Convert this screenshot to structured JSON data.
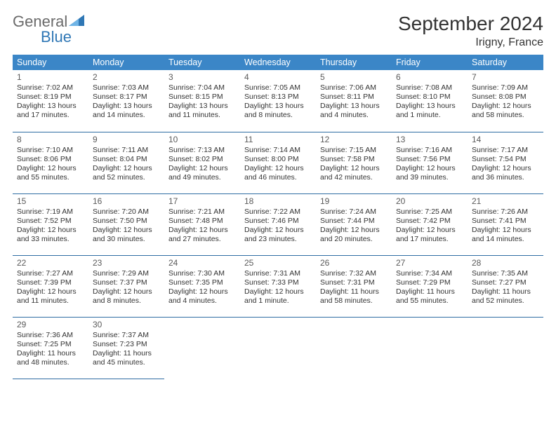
{
  "brand": {
    "general": "General",
    "blue": "Blue"
  },
  "title": "September 2024",
  "location": "Irigny, France",
  "colors": {
    "header_bg": "#3b86c7",
    "header_text": "#ffffff",
    "row_border": "#2f6da3",
    "brand_blue": "#2f77b5",
    "brand_gray": "#6b6b6b",
    "text": "#333333",
    "background": "#ffffff"
  },
  "weekdays": [
    "Sunday",
    "Monday",
    "Tuesday",
    "Wednesday",
    "Thursday",
    "Friday",
    "Saturday"
  ],
  "days": [
    {
      "n": "1",
      "sr": "Sunrise: 7:02 AM",
      "ss": "Sunset: 8:19 PM",
      "d1": "Daylight: 13 hours",
      "d2": "and 17 minutes."
    },
    {
      "n": "2",
      "sr": "Sunrise: 7:03 AM",
      "ss": "Sunset: 8:17 PM",
      "d1": "Daylight: 13 hours",
      "d2": "and 14 minutes."
    },
    {
      "n": "3",
      "sr": "Sunrise: 7:04 AM",
      "ss": "Sunset: 8:15 PM",
      "d1": "Daylight: 13 hours",
      "d2": "and 11 minutes."
    },
    {
      "n": "4",
      "sr": "Sunrise: 7:05 AM",
      "ss": "Sunset: 8:13 PM",
      "d1": "Daylight: 13 hours",
      "d2": "and 8 minutes."
    },
    {
      "n": "5",
      "sr": "Sunrise: 7:06 AM",
      "ss": "Sunset: 8:11 PM",
      "d1": "Daylight: 13 hours",
      "d2": "and 4 minutes."
    },
    {
      "n": "6",
      "sr": "Sunrise: 7:08 AM",
      "ss": "Sunset: 8:10 PM",
      "d1": "Daylight: 13 hours",
      "d2": "and 1 minute."
    },
    {
      "n": "7",
      "sr": "Sunrise: 7:09 AM",
      "ss": "Sunset: 8:08 PM",
      "d1": "Daylight: 12 hours",
      "d2": "and 58 minutes."
    },
    {
      "n": "8",
      "sr": "Sunrise: 7:10 AM",
      "ss": "Sunset: 8:06 PM",
      "d1": "Daylight: 12 hours",
      "d2": "and 55 minutes."
    },
    {
      "n": "9",
      "sr": "Sunrise: 7:11 AM",
      "ss": "Sunset: 8:04 PM",
      "d1": "Daylight: 12 hours",
      "d2": "and 52 minutes."
    },
    {
      "n": "10",
      "sr": "Sunrise: 7:13 AM",
      "ss": "Sunset: 8:02 PM",
      "d1": "Daylight: 12 hours",
      "d2": "and 49 minutes."
    },
    {
      "n": "11",
      "sr": "Sunrise: 7:14 AM",
      "ss": "Sunset: 8:00 PM",
      "d1": "Daylight: 12 hours",
      "d2": "and 46 minutes."
    },
    {
      "n": "12",
      "sr": "Sunrise: 7:15 AM",
      "ss": "Sunset: 7:58 PM",
      "d1": "Daylight: 12 hours",
      "d2": "and 42 minutes."
    },
    {
      "n": "13",
      "sr": "Sunrise: 7:16 AM",
      "ss": "Sunset: 7:56 PM",
      "d1": "Daylight: 12 hours",
      "d2": "and 39 minutes."
    },
    {
      "n": "14",
      "sr": "Sunrise: 7:17 AM",
      "ss": "Sunset: 7:54 PM",
      "d1": "Daylight: 12 hours",
      "d2": "and 36 minutes."
    },
    {
      "n": "15",
      "sr": "Sunrise: 7:19 AM",
      "ss": "Sunset: 7:52 PM",
      "d1": "Daylight: 12 hours",
      "d2": "and 33 minutes."
    },
    {
      "n": "16",
      "sr": "Sunrise: 7:20 AM",
      "ss": "Sunset: 7:50 PM",
      "d1": "Daylight: 12 hours",
      "d2": "and 30 minutes."
    },
    {
      "n": "17",
      "sr": "Sunrise: 7:21 AM",
      "ss": "Sunset: 7:48 PM",
      "d1": "Daylight: 12 hours",
      "d2": "and 27 minutes."
    },
    {
      "n": "18",
      "sr": "Sunrise: 7:22 AM",
      "ss": "Sunset: 7:46 PM",
      "d1": "Daylight: 12 hours",
      "d2": "and 23 minutes."
    },
    {
      "n": "19",
      "sr": "Sunrise: 7:24 AM",
      "ss": "Sunset: 7:44 PM",
      "d1": "Daylight: 12 hours",
      "d2": "and 20 minutes."
    },
    {
      "n": "20",
      "sr": "Sunrise: 7:25 AM",
      "ss": "Sunset: 7:42 PM",
      "d1": "Daylight: 12 hours",
      "d2": "and 17 minutes."
    },
    {
      "n": "21",
      "sr": "Sunrise: 7:26 AM",
      "ss": "Sunset: 7:41 PM",
      "d1": "Daylight: 12 hours",
      "d2": "and 14 minutes."
    },
    {
      "n": "22",
      "sr": "Sunrise: 7:27 AM",
      "ss": "Sunset: 7:39 PM",
      "d1": "Daylight: 12 hours",
      "d2": "and 11 minutes."
    },
    {
      "n": "23",
      "sr": "Sunrise: 7:29 AM",
      "ss": "Sunset: 7:37 PM",
      "d1": "Daylight: 12 hours",
      "d2": "and 8 minutes."
    },
    {
      "n": "24",
      "sr": "Sunrise: 7:30 AM",
      "ss": "Sunset: 7:35 PM",
      "d1": "Daylight: 12 hours",
      "d2": "and 4 minutes."
    },
    {
      "n": "25",
      "sr": "Sunrise: 7:31 AM",
      "ss": "Sunset: 7:33 PM",
      "d1": "Daylight: 12 hours",
      "d2": "and 1 minute."
    },
    {
      "n": "26",
      "sr": "Sunrise: 7:32 AM",
      "ss": "Sunset: 7:31 PM",
      "d1": "Daylight: 11 hours",
      "d2": "and 58 minutes."
    },
    {
      "n": "27",
      "sr": "Sunrise: 7:34 AM",
      "ss": "Sunset: 7:29 PM",
      "d1": "Daylight: 11 hours",
      "d2": "and 55 minutes."
    },
    {
      "n": "28",
      "sr": "Sunrise: 7:35 AM",
      "ss": "Sunset: 7:27 PM",
      "d1": "Daylight: 11 hours",
      "d2": "and 52 minutes."
    },
    {
      "n": "29",
      "sr": "Sunrise: 7:36 AM",
      "ss": "Sunset: 7:25 PM",
      "d1": "Daylight: 11 hours",
      "d2": "and 48 minutes."
    },
    {
      "n": "30",
      "sr": "Sunrise: 7:37 AM",
      "ss": "Sunset: 7:23 PM",
      "d1": "Daylight: 11 hours",
      "d2": "and 45 minutes."
    }
  ]
}
